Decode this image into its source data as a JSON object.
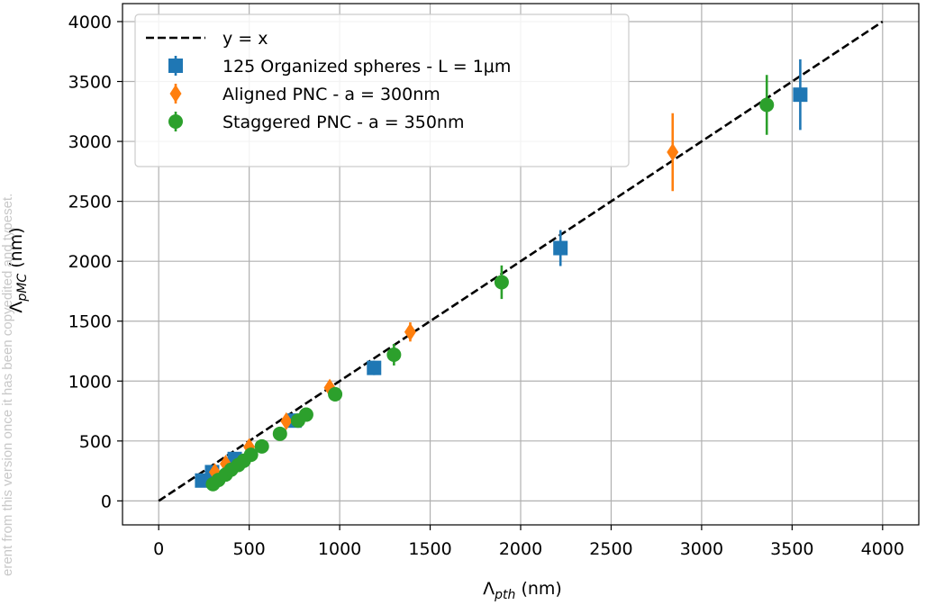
{
  "watermark": "erent from this version once it has been copyedited and typeset.",
  "chart_data": {
    "type": "scatter",
    "xlabel": "Λ_pth (nm)",
    "ylabel": "Λ_pMC (nm)",
    "xlim": [
      -200,
      4200
    ],
    "ylim": [
      -200,
      4150
    ],
    "xticks": [
      0,
      500,
      1000,
      1500,
      2000,
      2500,
      3000,
      3500,
      4000
    ],
    "yticks": [
      0,
      500,
      1000,
      1500,
      2000,
      2500,
      3000,
      3500,
      4000
    ],
    "grid": true,
    "legend_position": "top-left",
    "reference_line": {
      "name": "y = x",
      "x": [
        0,
        4000
      ],
      "y": [
        0,
        4000
      ],
      "color": "#000000",
      "style": "dashed"
    },
    "series": [
      {
        "name": "125 Organized spheres - L = 1μm",
        "marker": "square",
        "color": "#1f77b4",
        "points": [
          {
            "x": 240,
            "y": 170,
            "err": 40
          },
          {
            "x": 295,
            "y": 240,
            "err": 40
          },
          {
            "x": 420,
            "y": 350,
            "err": 40
          },
          {
            "x": 750,
            "y": 670,
            "err": 50
          },
          {
            "x": 1190,
            "y": 1110,
            "err": 60
          },
          {
            "x": 2220,
            "y": 2110,
            "err": 150
          },
          {
            "x": 3545,
            "y": 3390,
            "err": 295
          }
        ]
      },
      {
        "name": "Aligned PNC - a = 300nm",
        "marker": "diamond",
        "color": "#ff7f0e",
        "points": [
          {
            "x": 310,
            "y": 240,
            "err": 30
          },
          {
            "x": 370,
            "y": 310,
            "err": 35
          },
          {
            "x": 500,
            "y": 450,
            "err": 40
          },
          {
            "x": 705,
            "y": 665,
            "err": 45
          },
          {
            "x": 945,
            "y": 945,
            "err": 60
          },
          {
            "x": 1390,
            "y": 1410,
            "err": 80
          },
          {
            "x": 2840,
            "y": 2910,
            "err": 325
          }
        ]
      },
      {
        "name": "Staggered PNC - a = 350nm",
        "marker": "circle",
        "color": "#2ca02c",
        "points": [
          {
            "x": 300,
            "y": 140,
            "err": 20
          },
          {
            "x": 330,
            "y": 175,
            "err": 20
          },
          {
            "x": 370,
            "y": 220,
            "err": 25
          },
          {
            "x": 400,
            "y": 260,
            "err": 25
          },
          {
            "x": 440,
            "y": 300,
            "err": 25
          },
          {
            "x": 470,
            "y": 335,
            "err": 30
          },
          {
            "x": 510,
            "y": 385,
            "err": 30
          },
          {
            "x": 570,
            "y": 455,
            "err": 35
          },
          {
            "x": 670,
            "y": 560,
            "err": 35
          },
          {
            "x": 770,
            "y": 670,
            "err": 40
          },
          {
            "x": 815,
            "y": 720,
            "err": 40
          },
          {
            "x": 975,
            "y": 890,
            "err": 60
          },
          {
            "x": 1300,
            "y": 1220,
            "err": 90
          },
          {
            "x": 1895,
            "y": 1825,
            "err": 140
          },
          {
            "x": 3360,
            "y": 3305,
            "err": 250
          }
        ]
      }
    ]
  }
}
